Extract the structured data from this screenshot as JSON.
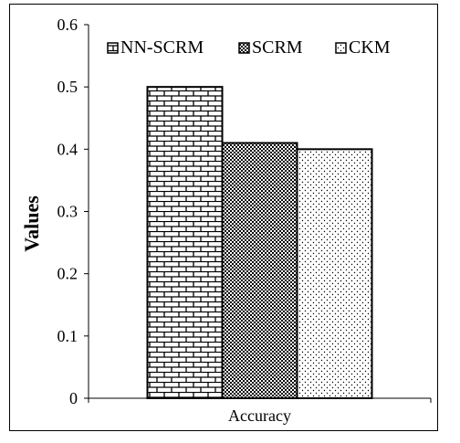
{
  "chart_data": {
    "type": "bar",
    "categories": [
      "Accuracy"
    ],
    "series": [
      {
        "name": "NN-SCRM",
        "values": [
          0.5
        ],
        "pattern": "brick"
      },
      {
        "name": "SCRM",
        "values": [
          0.41
        ],
        "pattern": "checker"
      },
      {
        "name": "CKM",
        "values": [
          0.4
        ],
        "pattern": "dots"
      }
    ],
    "ylabel": "Values",
    "ylim": [
      0,
      0.6
    ],
    "yticks": [
      "0",
      "0.1",
      "0.2",
      "0.3",
      "0.4",
      "0.5",
      "0.6"
    ],
    "legend_position": "top",
    "grid": false,
    "colors": {
      "bar_edge": "#000000",
      "background": "#ffffff"
    }
  }
}
